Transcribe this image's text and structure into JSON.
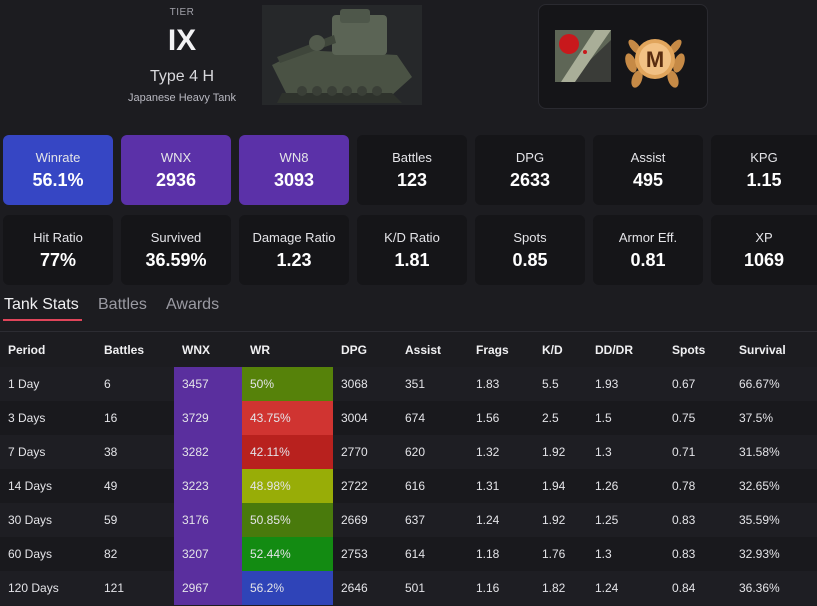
{
  "header": {
    "tier_label": "TIER",
    "tier": "IX",
    "tank_name": "Type 4 H",
    "tank_type": "Japanese Heavy Tank",
    "mastery_letter": "M"
  },
  "colors": {
    "winrate_card": "#3646c4",
    "wnx_card": "#5b31a8",
    "wn8_card": "#5b31a8",
    "tab_underline": "#e0455a",
    "wnx_cell": "#5a2f9e"
  },
  "stat_cards_row1": [
    {
      "label": "Winrate",
      "value": "56.1%"
    },
    {
      "label": "WNX",
      "value": "2936"
    },
    {
      "label": "WN8",
      "value": "3093"
    },
    {
      "label": "Battles",
      "value": "123"
    },
    {
      "label": "DPG",
      "value": "2633"
    },
    {
      "label": "Assist",
      "value": "495"
    },
    {
      "label": "KPG",
      "value": "1.15"
    }
  ],
  "stat_cards_row2": [
    {
      "label": "Hit Ratio",
      "value": "77%"
    },
    {
      "label": "Survived",
      "value": "36.59%"
    },
    {
      "label": "Damage Ratio",
      "value": "1.23"
    },
    {
      "label": "K/D Ratio",
      "value": "1.81"
    },
    {
      "label": "Spots",
      "value": "0.85"
    },
    {
      "label": "Armor Eff.",
      "value": "0.81"
    },
    {
      "label": "XP",
      "value": "1069"
    }
  ],
  "tabs": [
    {
      "label": "Tank Stats",
      "active": true
    },
    {
      "label": "Battles",
      "active": false
    },
    {
      "label": "Awards",
      "active": false
    }
  ],
  "table": {
    "headers": [
      "Period",
      "Battles",
      "WNX",
      "WR",
      "DPG",
      "Assist",
      "Frags",
      "K/D",
      "DD/DR",
      "Spots",
      "Survival"
    ],
    "rows": [
      {
        "period": "1 Day",
        "battles": "6",
        "wnx": "3457",
        "wr": "50%",
        "wr_color": "#56820a",
        "dpg": "3068",
        "assist": "351",
        "frags": "1.83",
        "kd": "5.5",
        "dddr": "1.93",
        "spots": "0.67",
        "survival": "66.67%"
      },
      {
        "period": "3 Days",
        "battles": "16",
        "wnx": "3729",
        "wr": "43.75%",
        "wr_color": "#d03431",
        "dpg": "3004",
        "assist": "674",
        "frags": "1.56",
        "kd": "2.5",
        "dddr": "1.5",
        "spots": "0.75",
        "survival": "37.5%"
      },
      {
        "period": "7 Days",
        "battles": "38",
        "wnx": "3282",
        "wr": "42.11%",
        "wr_color": "#b8211e",
        "dpg": "2770",
        "assist": "620",
        "frags": "1.32",
        "kd": "1.92",
        "dddr": "1.3",
        "spots": "0.71",
        "survival": "31.58%"
      },
      {
        "period": "14 Days",
        "battles": "49",
        "wnx": "3223",
        "wr": "48.98%",
        "wr_color": "#98ad07",
        "dpg": "2722",
        "assist": "616",
        "frags": "1.31",
        "kd": "1.94",
        "dddr": "1.26",
        "spots": "0.78",
        "survival": "32.65%"
      },
      {
        "period": "30 Days",
        "battles": "59",
        "wnx": "3176",
        "wr": "50.85%",
        "wr_color": "#497a0c",
        "dpg": "2669",
        "assist": "637",
        "frags": "1.24",
        "kd": "1.92",
        "dddr": "1.25",
        "spots": "0.83",
        "survival": "35.59%"
      },
      {
        "period": "60 Days",
        "battles": "82",
        "wnx": "3207",
        "wr": "52.44%",
        "wr_color": "#138b12",
        "dpg": "2753",
        "assist": "614",
        "frags": "1.18",
        "kd": "1.76",
        "dddr": "1.3",
        "spots": "0.83",
        "survival": "32.93%"
      },
      {
        "period": "120 Days",
        "battles": "121",
        "wnx": "2967",
        "wr": "56.2%",
        "wr_color": "#2f44b8",
        "dpg": "2646",
        "assist": "501",
        "frags": "1.16",
        "kd": "1.82",
        "dddr": "1.24",
        "spots": "0.84",
        "survival": "36.36%"
      }
    ]
  }
}
